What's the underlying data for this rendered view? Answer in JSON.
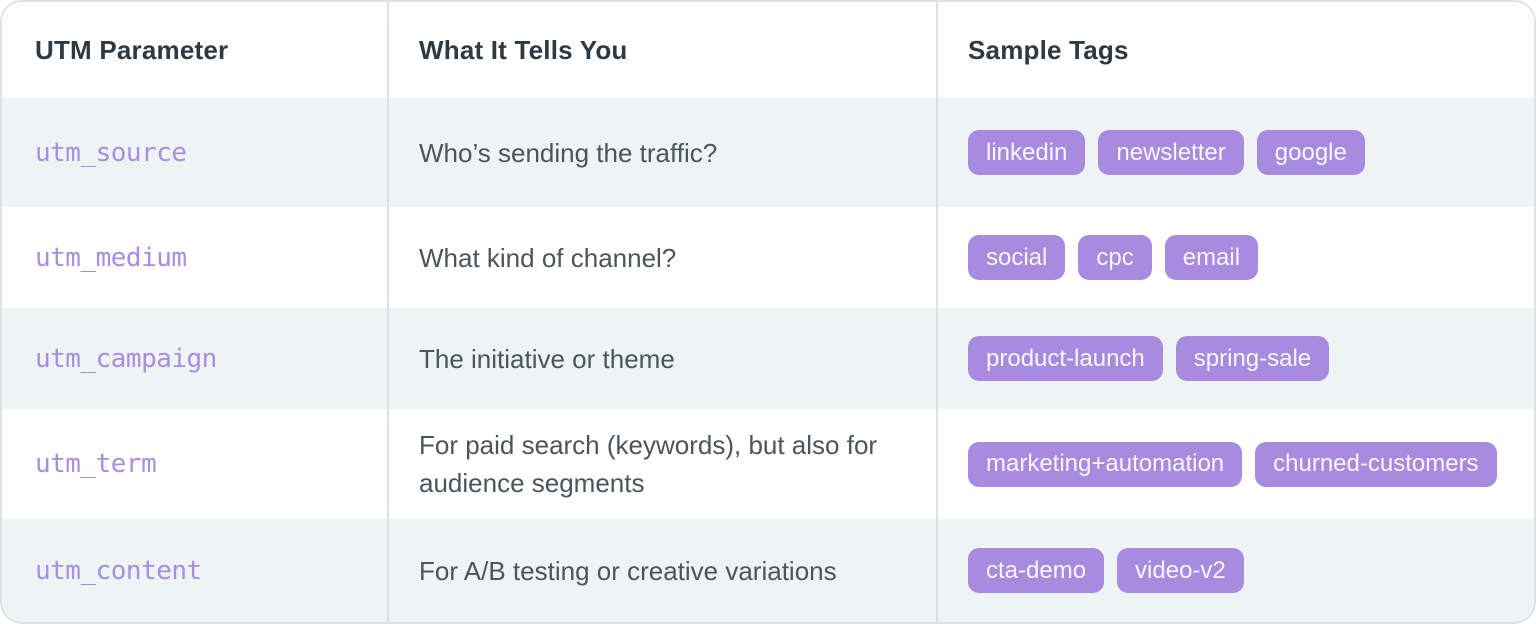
{
  "table": {
    "headers": [
      "UTM Parameter",
      "What It Tells You",
      "Sample Tags"
    ],
    "rows": [
      {
        "param": "utm_source",
        "description": "Who’s sending the traffic?",
        "tags": [
          "linkedin",
          "newsletter",
          "google"
        ]
      },
      {
        "param": "utm_medium",
        "description": "What kind of channel?",
        "tags": [
          "social",
          "cpc",
          "email"
        ]
      },
      {
        "param": "utm_campaign",
        "description": "The initiative or theme",
        "tags": [
          "product-launch",
          "spring-sale"
        ]
      },
      {
        "param": "utm_term",
        "description": "For paid search (keywords), but also for audience segments",
        "tags": [
          "marketing+automation",
          "churned-customers"
        ]
      },
      {
        "param": "utm_content",
        "description": "For A/B testing or creative variations",
        "tags": [
          "cta-demo",
          "video-v2"
        ]
      }
    ],
    "colors": {
      "accent": "#a88bdf",
      "param_text": "#aa8ce1",
      "row_alt_bg": "#edf4f3",
      "divider": "#d9e2e6",
      "header_text": "#2d3a43",
      "body_text": "#4b555c",
      "pill_text": "#f8f6fc"
    }
  }
}
